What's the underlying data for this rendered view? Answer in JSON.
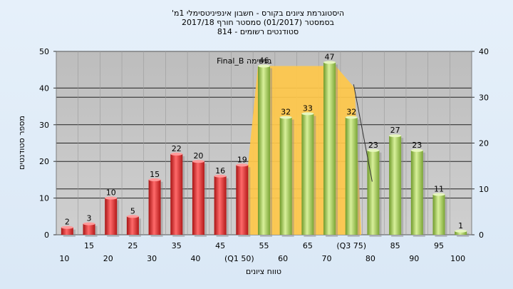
{
  "chart_data": {
    "type": "bar",
    "title_lines": [
      "היסטוגרמת ציונים בקורס - חשבון אינפיניטסימלי 1מ'",
      "בסמסטר  (01/2017)  סמסטר חורף  2017/18",
      "סטודנטים רשומים - 814"
    ],
    "xlabel": "טווח ציונים",
    "ylabel": "מספר סטודנטים",
    "categories": [
      "10",
      "15",
      "20",
      "25",
      "30",
      "35",
      "40",
      "45",
      "50",
      "55",
      "60",
      "65",
      "70",
      "75",
      "80",
      "85",
      "90",
      "95",
      "100"
    ],
    "category_labels": [
      "10",
      "15",
      "20",
      "25",
      "30",
      "35",
      "40",
      "45",
      "(Q1 50)",
      "55",
      "60",
      "65",
      "70",
      "(Q3 75)",
      "80",
      "85",
      "90",
      "95",
      "100"
    ],
    "values": [
      2,
      3,
      10,
      5,
      15,
      22,
      20,
      16,
      19,
      46,
      32,
      33,
      47,
      32,
      23,
      27,
      23,
      11,
      1
    ],
    "bar_colors": [
      "red",
      "red",
      "red",
      "red",
      "red",
      "red",
      "red",
      "red",
      "red",
      "green",
      "green",
      "green",
      "green",
      "green",
      "green",
      "green",
      "green",
      "green",
      "green"
    ],
    "ylim_left": [
      0,
      50
    ],
    "yticks_left": [
      0,
      10,
      20,
      30,
      40,
      50
    ],
    "ylim_right": [
      0,
      40
    ],
    "yticks_right": [
      0,
      10,
      20,
      30,
      40
    ],
    "grid": true,
    "annotation": {
      "label": "Final_B בנשימה",
      "region_categories": [
        "50",
        "75"
      ]
    },
    "colors": {
      "red_bar": "#e23a3a",
      "green_bar": "#a5c85a",
      "plot_bg": "#c8c8c8",
      "region_fill": "#ffc84a"
    }
  }
}
